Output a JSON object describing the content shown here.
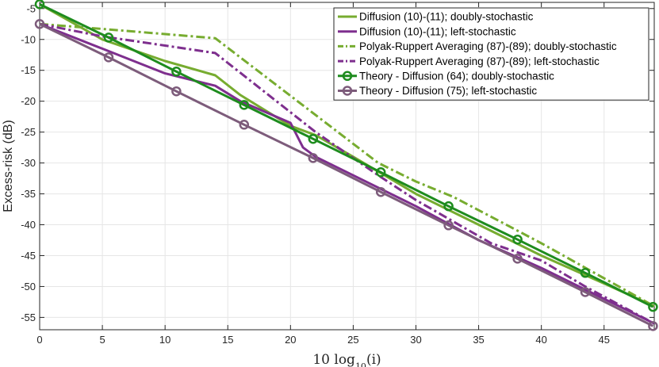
{
  "chart_data": {
    "type": "line",
    "xlabel_parts": [
      "10 log",
      "10",
      "(i)"
    ],
    "ylabel": "Excess-risk (dB)",
    "xlim": [
      0,
      49
    ],
    "ylim": [
      -57,
      -4
    ],
    "xticks": [
      0,
      5,
      10,
      15,
      20,
      25,
      30,
      35,
      40,
      45
    ],
    "yticks": [
      -5,
      -10,
      -15,
      -20,
      -25,
      -30,
      -35,
      -40,
      -45,
      -50,
      -55
    ],
    "grid": true,
    "legend_position": "top-right",
    "series": [
      {
        "name": "Diffusion (10)-(11); doubly-stochastic",
        "color": "#77AC30",
        "style": "solid",
        "marker": "none",
        "x": [
          0,
          5,
          10,
          14,
          16,
          20,
          22,
          25,
          30,
          35,
          40,
          45,
          49
        ],
        "y": [
          -4.3,
          -10,
          -13.5,
          -15.8,
          -19,
          -24,
          -25.5,
          -29,
          -35,
          -40,
          -45,
          -49.5,
          -53.2
        ]
      },
      {
        "name": "Diffusion (10)-(11); left-stochastic",
        "color": "#7E2F8E",
        "style": "solid",
        "marker": "none",
        "x": [
          0,
          5,
          10,
          14,
          16,
          20,
          21,
          22,
          25,
          30,
          35,
          40,
          45,
          49
        ],
        "y": [
          -7.5,
          -11.5,
          -15.5,
          -17.5,
          -20,
          -23.5,
          -27.5,
          -29,
          -32,
          -37,
          -42.5,
          -47,
          -52,
          -56
        ]
      },
      {
        "name": "Polyak-Ruppert Averaging (87)-(89); doubly-stochastic",
        "color": "#77AC30",
        "style": "dashdot",
        "marker": "none",
        "x": [
          0,
          5,
          14,
          27,
          30,
          33,
          40,
          49
        ],
        "y": [
          -7.5,
          -8.3,
          -9.8,
          -30,
          -33,
          -35.5,
          -43,
          -53.2
        ]
      },
      {
        "name": "Polyak-Ruppert Averaging (87)-(89); left-stochastic",
        "color": "#7E2F8E",
        "style": "dashdot",
        "marker": "none",
        "x": [
          0,
          5,
          10,
          14,
          22,
          27,
          30,
          33,
          36,
          40,
          43.5,
          49
        ],
        "y": [
          -7.5,
          -9.5,
          -11,
          -12.2,
          -25,
          -32,
          -36,
          -39.5,
          -43,
          -45.8,
          -50,
          -56
        ]
      },
      {
        "name": "Theory - Diffusion (64); doubly-stochastic",
        "color": "#1E8C1E",
        "style": "solid",
        "marker": "circle",
        "x": [
          0,
          5.5,
          10.9,
          16.3,
          21.8,
          27.2,
          32.6,
          38.1,
          43.5,
          48.9
        ],
        "y": [
          -4.3,
          -9.7,
          -15.2,
          -20.6,
          -26.1,
          -31.5,
          -37.0,
          -42.4,
          -47.8,
          -53.3
        ]
      },
      {
        "name": "Theory - Diffusion (75); left-stochastic",
        "color": "#7D5C7B",
        "style": "solid",
        "marker": "circle",
        "x": [
          0,
          5.5,
          10.9,
          16.3,
          21.8,
          27.2,
          32.6,
          38.1,
          43.5,
          48.9
        ],
        "y": [
          -7.5,
          -12.9,
          -18.4,
          -23.8,
          -29.2,
          -34.7,
          -40.1,
          -45.5,
          -50.9,
          -56.4
        ]
      }
    ]
  }
}
